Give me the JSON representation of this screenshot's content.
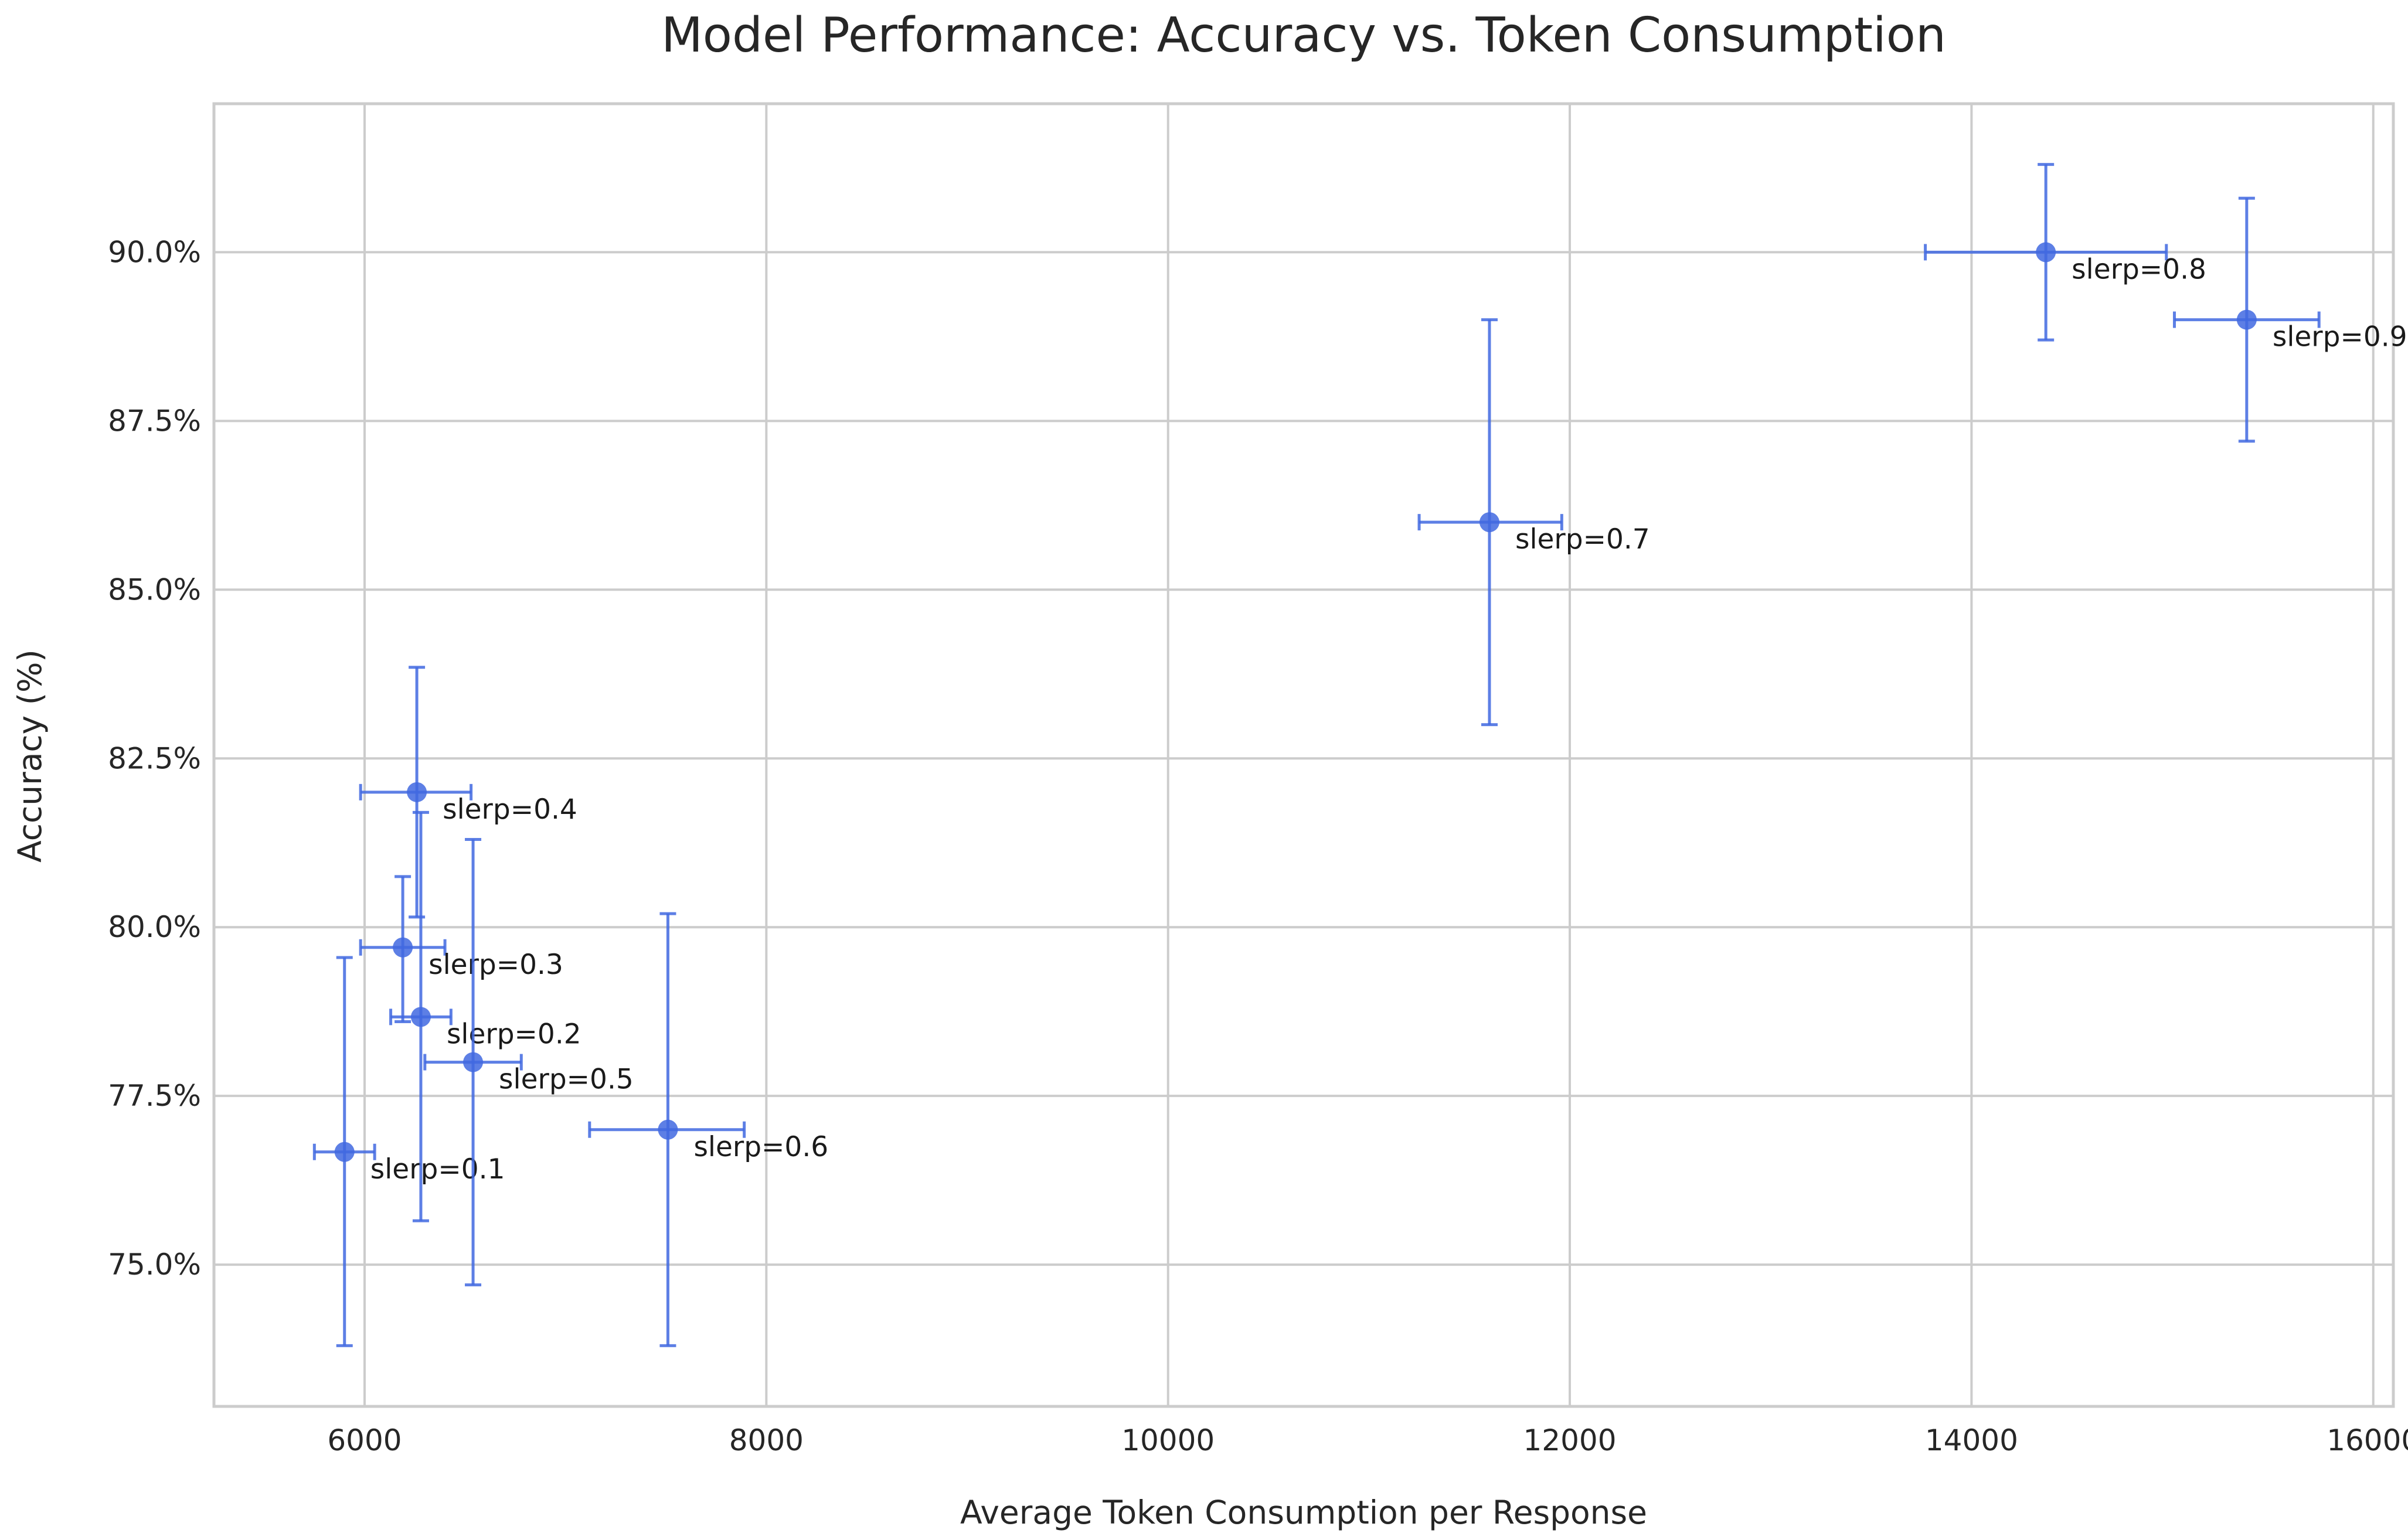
{
  "chart_data": {
    "type": "scatter",
    "title": "Model Performance: Accuracy vs. Token Consumption",
    "xlabel": "Average Token Consumption per Response",
    "ylabel": "Accuracy (%)",
    "xlim": [
      5250,
      16100
    ],
    "ylim": [
      72.9,
      92.2
    ],
    "xticks": [
      6000,
      8000,
      10000,
      12000,
      14000,
      16000
    ],
    "xtick_labels": [
      "6000",
      "8000",
      "10000",
      "12000",
      "14000",
      "16000"
    ],
    "yticks": [
      75.0,
      77.5,
      80.0,
      82.5,
      85.0,
      87.5,
      90.0
    ],
    "ytick_labels": [
      "75.0%",
      "77.5%",
      "80.0%",
      "82.5%",
      "85.0%",
      "87.5%",
      "90.0%"
    ],
    "grid": true,
    "series_color": "#4169e1",
    "points": [
      {
        "label": "slerp=0.1",
        "x": 5900,
        "y": 76.67,
        "xerr": [
          5750,
          6050
        ],
        "yerr": [
          73.8,
          79.55
        ]
      },
      {
        "label": "slerp=0.2",
        "x": 6280,
        "y": 78.67,
        "xerr": [
          6130,
          6430
        ],
        "yerr": [
          75.65,
          81.7
        ]
      },
      {
        "label": "slerp=0.3",
        "x": 6190,
        "y": 79.7,
        "xerr": [
          5980,
          6400
        ],
        "yerr": [
          78.6,
          80.75
        ]
      },
      {
        "label": "slerp=0.4",
        "x": 6260,
        "y": 82.0,
        "xerr": [
          5980,
          6530
        ],
        "yerr": [
          80.15,
          83.85
        ]
      },
      {
        "label": "slerp=0.5",
        "x": 6540,
        "y": 78.0,
        "xerr": [
          6300,
          6780
        ],
        "yerr": [
          74.7,
          81.3
        ]
      },
      {
        "label": "slerp=0.6",
        "x": 7510,
        "y": 77.0,
        "xerr": [
          7120,
          7890
        ],
        "yerr": [
          73.8,
          80.2
        ]
      },
      {
        "label": "slerp=0.7",
        "x": 11600,
        "y": 86.0,
        "xerr": [
          11250,
          11960
        ],
        "yerr": [
          83.0,
          89.0
        ]
      },
      {
        "label": "slerp=0.8",
        "x": 14370,
        "y": 90.0,
        "xerr": [
          13770,
          14970
        ],
        "yerr": [
          88.7,
          91.3
        ]
      },
      {
        "label": "slerp=0.9",
        "x": 15370,
        "y": 89.0,
        "xerr": [
          15010,
          15730
        ],
        "yerr": [
          87.2,
          90.8
        ]
      }
    ]
  }
}
